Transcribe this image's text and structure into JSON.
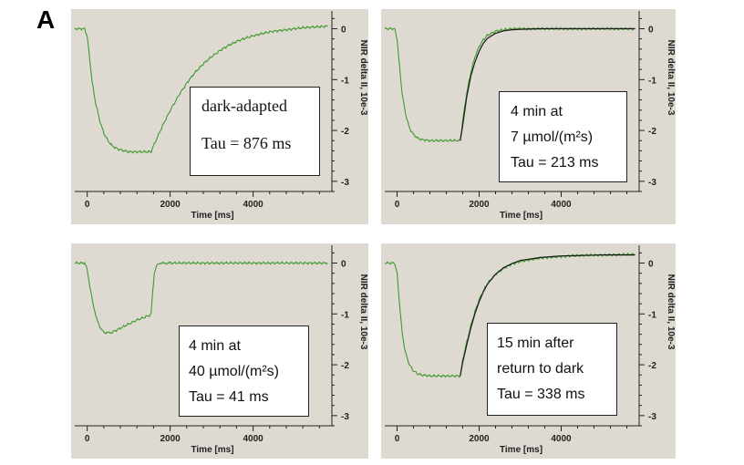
{
  "figure_label": "A",
  "colors": {
    "background": "#dedad2",
    "measured": "#3f9a2f",
    "fit": "#1a1a1a",
    "axis": "#222222"
  },
  "chart_data": [
    {
      "type": "line",
      "xlabel": "Time [ms]",
      "ylabel": "NIR delta II, 10e-3",
      "xlim": [
        -300,
        5900
      ],
      "ylim": [
        -3.2,
        0.35
      ],
      "xticks": [
        0,
        2000,
        4000
      ],
      "yticks": [
        0,
        -1,
        -2,
        -3
      ],
      "legend_lines": [
        "dark-adapted",
        "Tau = 876 ms"
      ],
      "legend_style": "serif",
      "has_fit": false,
      "series": [
        {
          "role": "measured",
          "x": [
            -300,
            -60,
            0,
            60,
            120,
            200,
            300,
            400,
            500,
            600,
            700,
            800,
            900,
            1000,
            1100,
            1200,
            1300,
            1400,
            1500,
            1540,
            1600,
            1700,
            1800,
            1900,
            2000,
            2200,
            2400,
            2600,
            2800,
            3000,
            3200,
            3400,
            3600,
            3800,
            4000,
            4200,
            4400,
            4600,
            4800,
            5000,
            5200,
            5400,
            5600,
            5800
          ],
          "y": [
            0.0,
            0.0,
            -0.15,
            -0.6,
            -1.05,
            -1.45,
            -1.8,
            -2.05,
            -2.2,
            -2.3,
            -2.35,
            -2.38,
            -2.4,
            -2.42,
            -2.42,
            -2.42,
            -2.42,
            -2.42,
            -2.42,
            -2.42,
            -2.3,
            -2.12,
            -1.94,
            -1.77,
            -1.61,
            -1.32,
            -1.07,
            -0.86,
            -0.69,
            -0.55,
            -0.43,
            -0.33,
            -0.25,
            -0.19,
            -0.14,
            -0.1,
            -0.06,
            -0.04,
            -0.02,
            0.0,
            0.02,
            0.03,
            0.04,
            0.05
          ]
        }
      ]
    },
    {
      "type": "line",
      "xlabel": "Time [ms]",
      "ylabel": "NIR delta II, 10e-3",
      "xlim": [
        -300,
        5900
      ],
      "ylim": [
        -3.2,
        0.35
      ],
      "xticks": [
        0,
        2000,
        4000
      ],
      "yticks": [
        0,
        -1,
        -2,
        -3
      ],
      "legend_lines": [
        "4 min at",
        "7 µmol/(m²s)",
        "Tau = 213 ms"
      ],
      "legend_style": "sans",
      "has_fit": true,
      "series": [
        {
          "role": "measured",
          "x": [
            -300,
            -60,
            0,
            60,
            120,
            200,
            300,
            400,
            500,
            600,
            800,
            1000,
            1200,
            1400,
            1500,
            1540,
            1600,
            1700,
            1800,
            1900,
            2000,
            2100,
            2200,
            2400,
            2600,
            2800,
            3000,
            3500,
            4000,
            4500,
            5000,
            5500,
            5800
          ],
          "y": [
            0.0,
            0.0,
            -0.2,
            -0.75,
            -1.25,
            -1.65,
            -1.95,
            -2.08,
            -2.15,
            -2.18,
            -2.2,
            -2.2,
            -2.2,
            -2.2,
            -2.2,
            -2.2,
            -1.8,
            -1.25,
            -0.85,
            -0.55,
            -0.35,
            -0.22,
            -0.13,
            -0.05,
            -0.02,
            0.0,
            0.0,
            0.0,
            0.0,
            0.0,
            0.0,
            0.0,
            0.0
          ]
        },
        {
          "role": "fit",
          "x": [
            1540,
            1600,
            1700,
            1800,
            1900,
            2000,
            2100,
            2200,
            2400,
            2600,
            2800,
            3000,
            3500,
            4000,
            4500,
            5000,
            5500,
            5800
          ],
          "y": [
            -2.2,
            -1.9,
            -1.33,
            -0.92,
            -0.65,
            -0.44,
            -0.29,
            -0.19,
            -0.09,
            -0.04,
            -0.02,
            -0.01,
            0.0,
            0.0,
            0.0,
            0.0,
            0.0,
            0.0
          ]
        }
      ]
    },
    {
      "type": "line",
      "xlabel": "Time [ms]",
      "ylabel": "NIR delta II, 10e-3",
      "xlim": [
        -300,
        5900
      ],
      "ylim": [
        -3.2,
        0.35
      ],
      "xticks": [
        0,
        2000,
        4000
      ],
      "yticks": [
        0,
        -1,
        -2,
        -3
      ],
      "legend_lines": [
        "4 min at",
        "40 µmol/(m²s)",
        "Tau = 41 ms"
      ],
      "legend_style": "sans",
      "has_fit": false,
      "series": [
        {
          "role": "measured",
          "x": [
            -300,
            -60,
            0,
            60,
            150,
            250,
            350,
            450,
            600,
            800,
            1000,
            1200,
            1400,
            1500,
            1540,
            1580,
            1620,
            1680,
            1750,
            1850,
            2000,
            2500,
            3000,
            3500,
            4000,
            4500,
            5000,
            5500,
            5800
          ],
          "y": [
            0.0,
            0.0,
            -0.12,
            -0.45,
            -0.85,
            -1.15,
            -1.32,
            -1.38,
            -1.36,
            -1.28,
            -1.2,
            -1.12,
            -1.06,
            -1.03,
            -1.0,
            -0.55,
            -0.2,
            -0.05,
            0.0,
            0.0,
            0.0,
            0.0,
            0.0,
            0.0,
            0.0,
            0.0,
            0.0,
            0.0,
            0.0
          ]
        }
      ]
    },
    {
      "type": "line",
      "xlabel": "Time [ms]",
      "ylabel": "NIR delta II, 10e-3",
      "xlim": [
        -300,
        5900
      ],
      "ylim": [
        -3.2,
        0.35
      ],
      "xticks": [
        0,
        2000,
        4000
      ],
      "yticks": [
        0,
        -1,
        -2,
        -3
      ],
      "legend_lines": [
        "15 min after",
        "return to dark",
        "Tau = 338 ms"
      ],
      "legend_style": "sans",
      "has_fit": true,
      "series": [
        {
          "role": "measured",
          "x": [
            -300,
            -60,
            0,
            60,
            120,
            200,
            300,
            400,
            500,
            600,
            800,
            1000,
            1200,
            1400,
            1500,
            1540,
            1600,
            1700,
            1800,
            1900,
            2000,
            2100,
            2200,
            2400,
            2600,
            2800,
            3000,
            3500,
            4000,
            4500,
            5000,
            5500,
            5800
          ],
          "y": [
            0.0,
            0.0,
            -0.2,
            -0.8,
            -1.35,
            -1.75,
            -2.0,
            -2.12,
            -2.18,
            -2.2,
            -2.22,
            -2.22,
            -2.22,
            -2.22,
            -2.22,
            -2.22,
            -1.9,
            -1.55,
            -1.22,
            -0.95,
            -0.72,
            -0.55,
            -0.4,
            -0.22,
            -0.1,
            -0.02,
            0.03,
            0.1,
            0.13,
            0.15,
            0.16,
            0.17,
            0.17
          ]
        },
        {
          "role": "fit",
          "x": [
            1540,
            1600,
            1700,
            1800,
            1900,
            2000,
            2100,
            2200,
            2400,
            2600,
            2800,
            3000,
            3500,
            4000,
            4500,
            5000,
            5500,
            5800
          ],
          "y": [
            -2.22,
            -1.95,
            -1.6,
            -1.27,
            -0.99,
            -0.76,
            -0.57,
            -0.42,
            -0.22,
            -0.09,
            -0.01,
            0.05,
            0.11,
            0.14,
            0.15,
            0.16,
            0.16,
            0.16
          ]
        }
      ]
    }
  ]
}
